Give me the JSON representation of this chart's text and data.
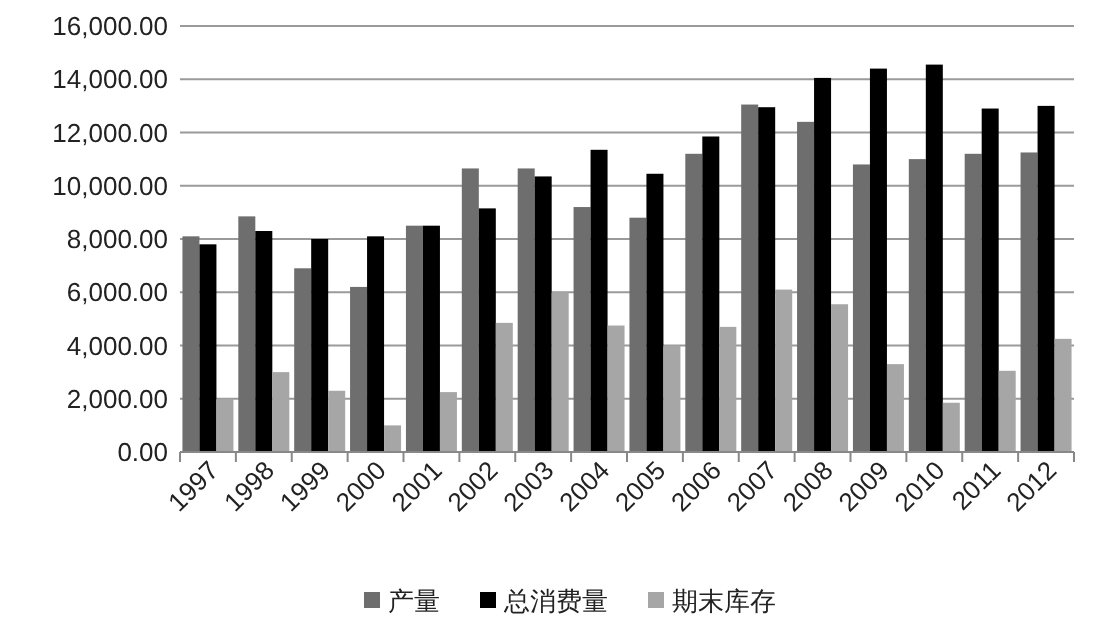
{
  "chart_data": {
    "type": "bar",
    "categories": [
      "1997",
      "1998",
      "1999",
      "2000",
      "2001",
      "2002",
      "2003",
      "2004",
      "2005",
      "2006",
      "2007",
      "2008",
      "2009",
      "2010",
      "2011",
      "2012"
    ],
    "series": [
      {
        "name": "产量",
        "color": "#6e6e6e",
        "values": [
          8100,
          8850,
          6900,
          6200,
          8500,
          10650,
          10650,
          9200,
          8800,
          11200,
          13050,
          12400,
          10800,
          11000,
          11200,
          11250
        ]
      },
      {
        "name": "总消费量",
        "color": "#000000",
        "values": [
          7800,
          8300,
          8000,
          8100,
          8500,
          9150,
          10350,
          11350,
          10450,
          11850,
          12950,
          14050,
          14400,
          14550,
          12900,
          13000
        ]
      },
      {
        "name": "期末库存",
        "color": "#a6a6a6",
        "values": [
          2000,
          3000,
          2300,
          1000,
          2250,
          4850,
          6000,
          4750,
          4000,
          4700,
          6100,
          5550,
          3300,
          1850,
          3050,
          4250
        ]
      }
    ],
    "ylim": [
      0,
      16000
    ],
    "yticks": [
      {
        "value": 0,
        "label": "0.00"
      },
      {
        "value": 2000,
        "label": "2,000.00"
      },
      {
        "value": 4000,
        "label": "4,000.00"
      },
      {
        "value": 6000,
        "label": "6,000.00"
      },
      {
        "value": 8000,
        "label": "8,000.00"
      },
      {
        "value": 10000,
        "label": "10,000.00"
      },
      {
        "value": 12000,
        "label": "12,000.00"
      },
      {
        "value": 14000,
        "label": "14,000.00"
      },
      {
        "value": 16000,
        "label": "16,000.00"
      }
    ],
    "grid": "y",
    "legend": "bottom"
  }
}
